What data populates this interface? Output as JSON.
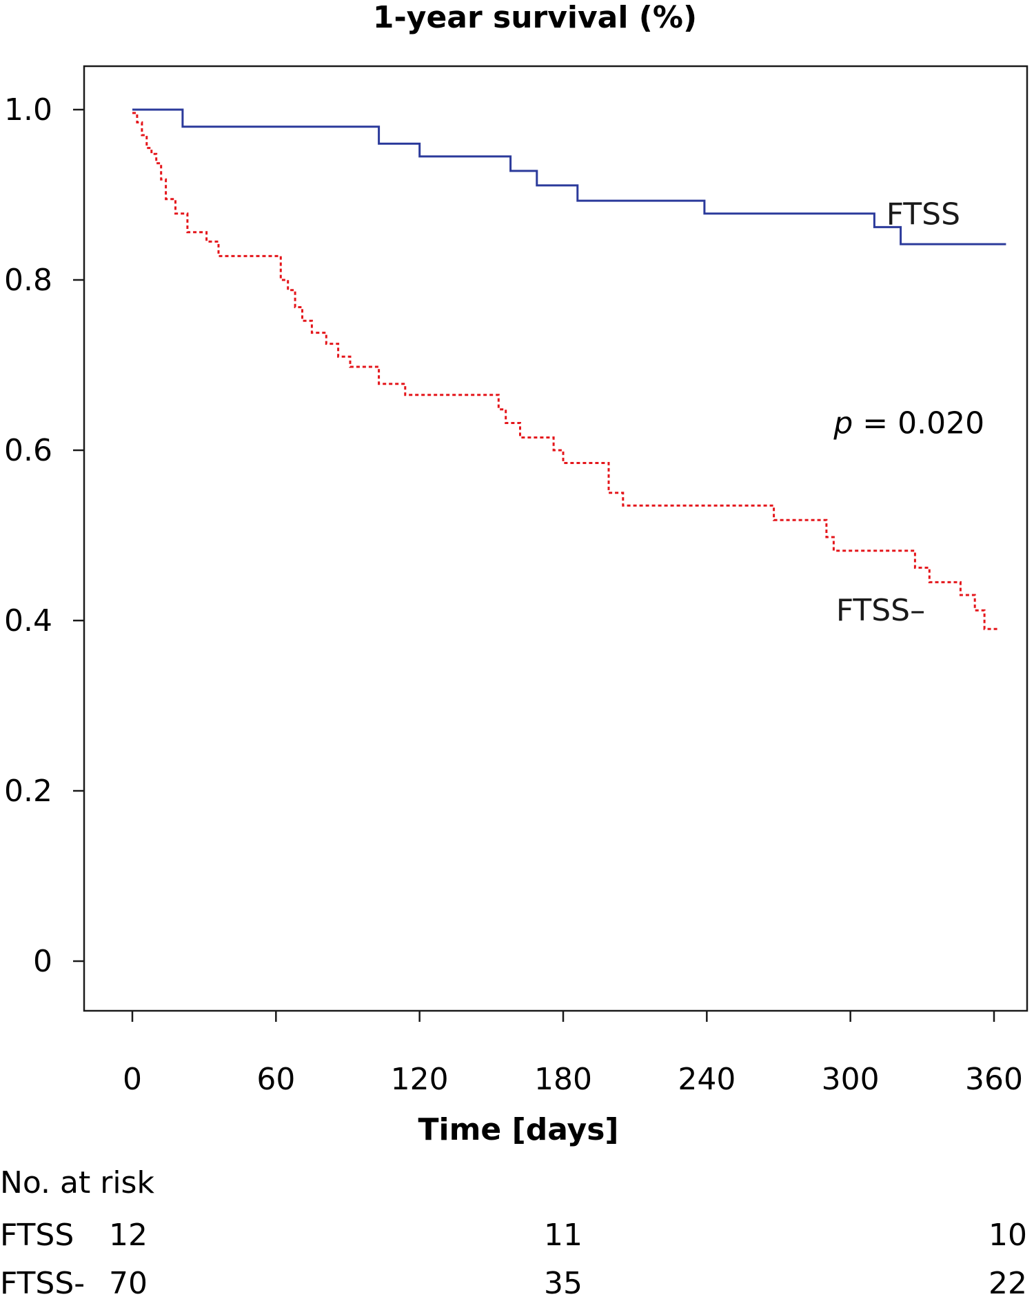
{
  "chart_data": {
    "type": "line",
    "title": "1-year survival (%)",
    "xlabel": "Time [days]",
    "ylabel": "",
    "xlim": [
      -20,
      375
    ],
    "ylim": [
      -0.11,
      1.1
    ],
    "x_ticks": [
      0,
      60,
      120,
      180,
      240,
      300,
      360
    ],
    "x_tick_labels": [
      "0",
      "60",
      "120",
      "180",
      "240",
      "300",
      "360"
    ],
    "y_ticks": [
      0,
      0.2,
      0.4,
      0.6,
      0.8,
      1.0
    ],
    "y_tick_labels": [
      "0",
      "0.2",
      "0.4",
      "0.6",
      "0.8",
      "1.0"
    ],
    "grid": false,
    "series": [
      {
        "name": "FTSS",
        "color": "#2b3a9b",
        "style": "solid",
        "step": true,
        "points": [
          [
            0,
            1.0
          ],
          [
            21,
            1.0
          ],
          [
            21,
            0.98
          ],
          [
            103,
            0.98
          ],
          [
            103,
            0.96
          ],
          [
            120,
            0.96
          ],
          [
            120,
            0.945
          ],
          [
            158,
            0.945
          ],
          [
            158,
            0.928
          ],
          [
            169,
            0.928
          ],
          [
            169,
            0.911
          ],
          [
            186,
            0.911
          ],
          [
            186,
            0.893
          ],
          [
            239,
            0.893
          ],
          [
            239,
            0.878
          ],
          [
            310,
            0.878
          ],
          [
            310,
            0.862
          ],
          [
            321,
            0.862
          ],
          [
            321,
            0.842
          ],
          [
            365,
            0.842
          ]
        ]
      },
      {
        "name": "FTSS–",
        "color": "#e4161b",
        "style": "dotted",
        "step": true,
        "points": [
          [
            0,
            0.996
          ],
          [
            2,
            0.996
          ],
          [
            2,
            0.985
          ],
          [
            4,
            0.985
          ],
          [
            4,
            0.97
          ],
          [
            6,
            0.97
          ],
          [
            6,
            0.955
          ],
          [
            8,
            0.955
          ],
          [
            8,
            0.948
          ],
          [
            10,
            0.948
          ],
          [
            10,
            0.937
          ],
          [
            12,
            0.937
          ],
          [
            12,
            0.918
          ],
          [
            14,
            0.918
          ],
          [
            14,
            0.895
          ],
          [
            18,
            0.895
          ],
          [
            18,
            0.878
          ],
          [
            23,
            0.878
          ],
          [
            23,
            0.856
          ],
          [
            31,
            0.856
          ],
          [
            31,
            0.845
          ],
          [
            36,
            0.845
          ],
          [
            36,
            0.828
          ],
          [
            62,
            0.828
          ],
          [
            62,
            0.8
          ],
          [
            65,
            0.8
          ],
          [
            65,
            0.788
          ],
          [
            68,
            0.788
          ],
          [
            68,
            0.768
          ],
          [
            71,
            0.768
          ],
          [
            71,
            0.752
          ],
          [
            75,
            0.752
          ],
          [
            75,
            0.738
          ],
          [
            81,
            0.738
          ],
          [
            81,
            0.725
          ],
          [
            86,
            0.725
          ],
          [
            86,
            0.71
          ],
          [
            91,
            0.71
          ],
          [
            91,
            0.698
          ],
          [
            103,
            0.698
          ],
          [
            103,
            0.678
          ],
          [
            114,
            0.678
          ],
          [
            114,
            0.665
          ],
          [
            153,
            0.665
          ],
          [
            153,
            0.648
          ],
          [
            156,
            0.648
          ],
          [
            156,
            0.632
          ],
          [
            162,
            0.632
          ],
          [
            162,
            0.615
          ],
          [
            176,
            0.615
          ],
          [
            176,
            0.6
          ],
          [
            180,
            0.6
          ],
          [
            180,
            0.585
          ],
          [
            199,
            0.585
          ],
          [
            199,
            0.55
          ],
          [
            205,
            0.55
          ],
          [
            205,
            0.535
          ],
          [
            268,
            0.535
          ],
          [
            268,
            0.518
          ],
          [
            290,
            0.518
          ],
          [
            290,
            0.498
          ],
          [
            293,
            0.498
          ],
          [
            293,
            0.482
          ],
          [
            327,
            0.482
          ],
          [
            327,
            0.462
          ],
          [
            333,
            0.462
          ],
          [
            333,
            0.445
          ],
          [
            346,
            0.445
          ],
          [
            346,
            0.43
          ],
          [
            352,
            0.43
          ],
          [
            352,
            0.412
          ],
          [
            356,
            0.412
          ],
          [
            356,
            0.39
          ],
          [
            362,
            0.39
          ]
        ]
      }
    ],
    "annotations": [
      {
        "text": "FTSS",
        "x": 315,
        "y": 0.865,
        "color": "#1a1a1a"
      },
      {
        "text": "FTSS–",
        "x": 294,
        "y": 0.4,
        "color": "#1a1a1a"
      }
    ],
    "p_value": {
      "prefix": "p",
      "text": " = 0.020",
      "x": 293,
      "y": 0.62
    },
    "risk_table": {
      "header": "No. at risk",
      "times": [
        0,
        180,
        360
      ],
      "rows": [
        {
          "label": "FTSS",
          "values": [
            "12",
            "11",
            "10"
          ]
        },
        {
          "label": "FTSS-",
          "values": [
            "70",
            "35",
            "22"
          ]
        }
      ]
    }
  }
}
